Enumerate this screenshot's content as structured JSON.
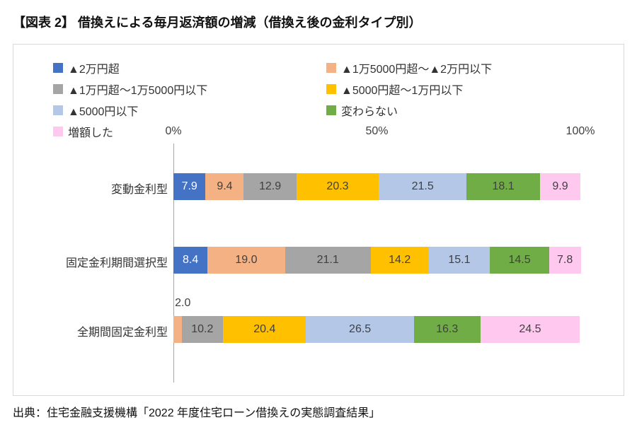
{
  "page": {
    "title": "【図表 2】 借換えによる毎月返済額の増減（借換え後の金利タイプ別）",
    "source": "出典：住宅金融支援機構「2022 年度住宅ローン借換えの実態調査結果」"
  },
  "chart_data": {
    "type": "bar",
    "orientation": "horizontal",
    "stacked": true,
    "unit": "%",
    "legend_position": "top",
    "grid": false,
    "x_axis": {
      "range": [
        0,
        100
      ],
      "ticks": [
        {
          "label": "0%",
          "value": 0
        },
        {
          "label": "50%",
          "value": 50
        },
        {
          "label": "100%",
          "value": 100
        }
      ]
    },
    "categories": [
      "変動金利型",
      "固定金利期間選択型",
      "全期間固定金利型"
    ],
    "series": [
      {
        "name": "▲2万円超",
        "color": "#4472C4",
        "values": [
          7.9,
          8.4,
          0
        ]
      },
      {
        "name": "▲1万5000円超～▲2万円以下",
        "color": "#F4B183",
        "values": [
          9.4,
          19.0,
          2.0
        ]
      },
      {
        "name": "▲1万円超～1万5000円以下",
        "color": "#A5A5A5",
        "values": [
          12.9,
          21.1,
          10.2
        ]
      },
      {
        "name": "▲5000円超～1万円以下",
        "color": "#FFC000",
        "values": [
          20.3,
          14.2,
          20.4
        ]
      },
      {
        "name": "▲5000円以下",
        "color": "#B4C7E7",
        "values": [
          21.5,
          15.1,
          26.5
        ]
      },
      {
        "name": "変わらない",
        "color": "#70AD47",
        "values": [
          18.1,
          14.5,
          16.3
        ]
      },
      {
        "name": "増額した",
        "color": "#FFC9EF",
        "values": [
          9.9,
          7.8,
          24.5
        ]
      }
    ]
  }
}
